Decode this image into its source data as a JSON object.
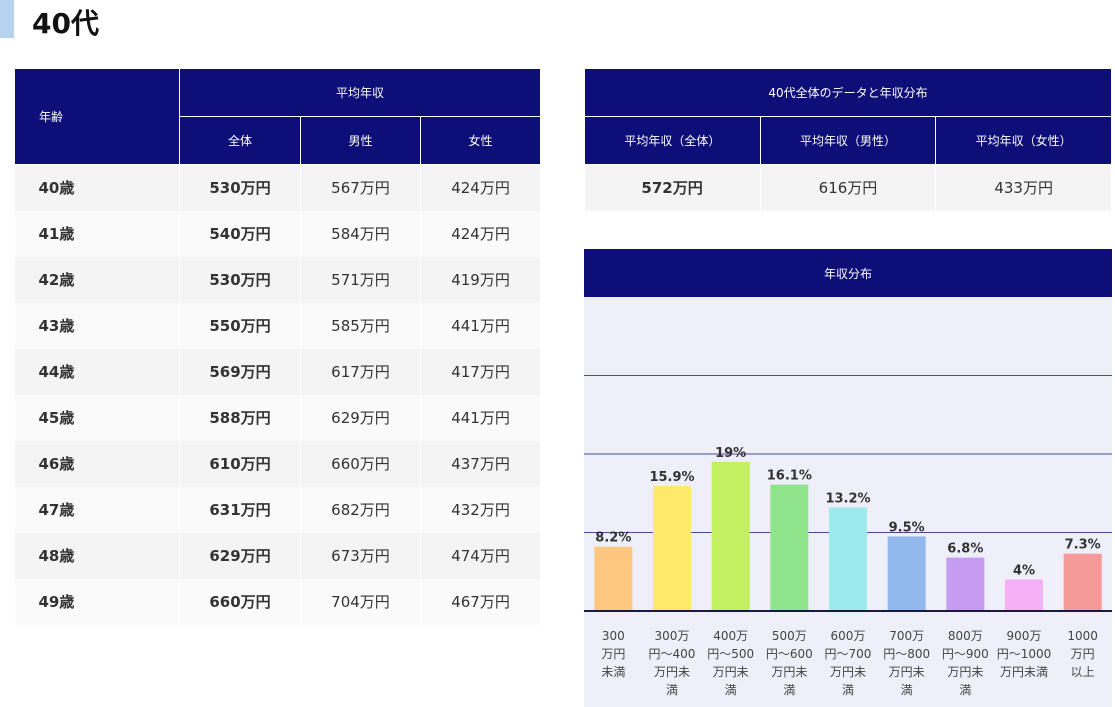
{
  "heading": "40代",
  "age_table": {
    "corner": "年齢",
    "group_header": "平均年収",
    "columns": [
      "全体",
      "男性",
      "女性"
    ],
    "rows": [
      {
        "age": "40歳",
        "total": "530万円",
        "male": "567万円",
        "female": "424万円"
      },
      {
        "age": "41歳",
        "total": "540万円",
        "male": "584万円",
        "female": "424万円"
      },
      {
        "age": "42歳",
        "total": "530万円",
        "male": "571万円",
        "female": "419万円"
      },
      {
        "age": "43歳",
        "total": "550万円",
        "male": "585万円",
        "female": "441万円"
      },
      {
        "age": "44歳",
        "total": "569万円",
        "male": "617万円",
        "female": "417万円"
      },
      {
        "age": "45歳",
        "total": "588万円",
        "male": "629万円",
        "female": "441万円"
      },
      {
        "age": "46歳",
        "total": "610万円",
        "male": "660万円",
        "female": "437万円"
      },
      {
        "age": "47歳",
        "total": "631万円",
        "male": "682万円",
        "female": "432万円"
      },
      {
        "age": "48歳",
        "total": "629万円",
        "male": "673万円",
        "female": "474万円"
      },
      {
        "age": "49歳",
        "total": "660万円",
        "male": "704万円",
        "female": "467万円"
      }
    ]
  },
  "summary": {
    "title": "40代全体のデータと年収分布",
    "columns": [
      "平均年収（全体）",
      "平均年収（男性）",
      "平均年収（女性）"
    ],
    "values": [
      "572万円",
      "616万円",
      "433万円"
    ]
  },
  "distribution_title": "年収分布",
  "chart_data": {
    "type": "bar",
    "categories": [
      [
        "300",
        "万円",
        "未満"
      ],
      [
        "300万",
        "円～400",
        "万円未",
        "満"
      ],
      [
        "400万",
        "円～500",
        "万円未",
        "満"
      ],
      [
        "500万",
        "円～600",
        "万円未",
        "満"
      ],
      [
        "600万",
        "円～700",
        "万円未",
        "満"
      ],
      [
        "700万",
        "円～800",
        "万円未",
        "満"
      ],
      [
        "800万",
        "円～900",
        "万円未",
        "満"
      ],
      [
        "900万",
        "円～1000",
        "万円未満"
      ],
      [
        "1000",
        "万円",
        "以上"
      ]
    ],
    "values": [
      8.2,
      15.9,
      19,
      16.1,
      13.2,
      9.5,
      6.8,
      4,
      7.3
    ],
    "labels": [
      "8.2%",
      "15.9%",
      "19%",
      "16.1%",
      "13.2%",
      "9.5%",
      "6.8%",
      "4%",
      "7.3%"
    ],
    "colors": [
      "#fdc77f",
      "#fee96a",
      "#c3f060",
      "#8fe38a",
      "#9ceaea",
      "#92b9ee",
      "#c69cf2",
      "#f5b0f3",
      "#f59898"
    ],
    "ylim": [
      0,
      40
    ],
    "grid": true
  }
}
